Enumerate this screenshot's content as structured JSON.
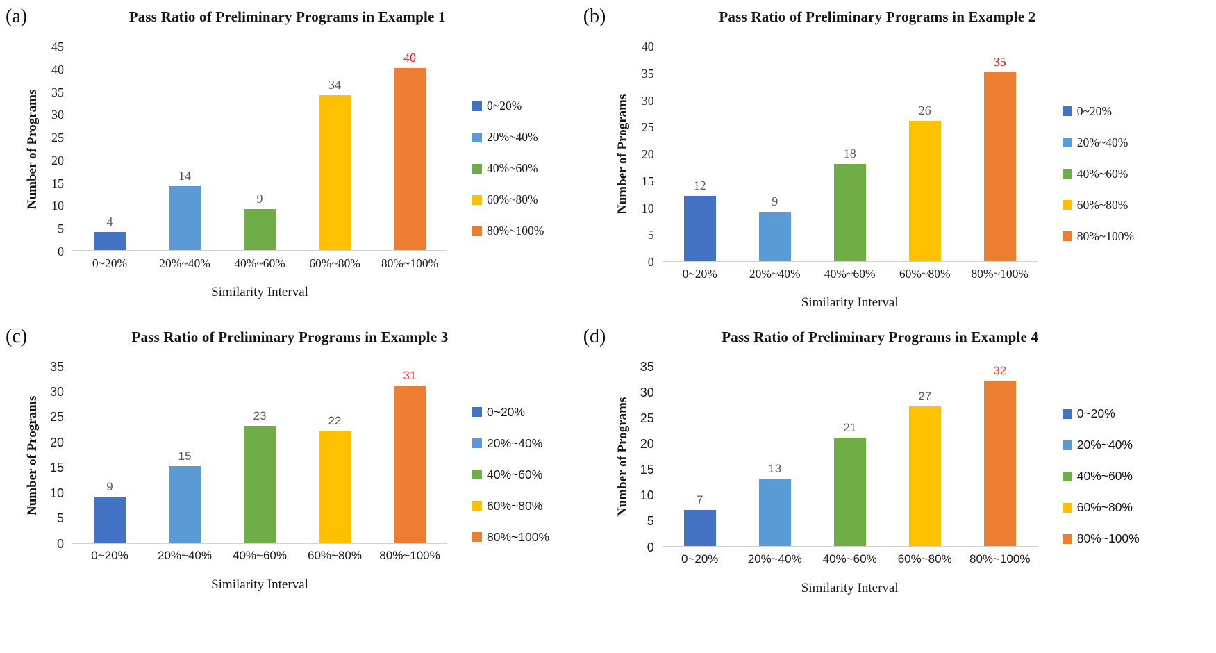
{
  "letters": [
    "(a)",
    "(b)",
    "(c)",
    "(d)"
  ],
  "chart_data": [
    {
      "type": "bar",
      "title": "Pass Ratio of Preliminary Programs in Example 1",
      "xlabel": "Similarity Interval",
      "ylabel": "Number of Programs",
      "categories": [
        "0~20%",
        "20%~40%",
        "40%~60%",
        "60%~80%",
        "80%~100%"
      ],
      "values": [
        4,
        14,
        9,
        34,
        40
      ],
      "ylim": [
        0,
        45
      ],
      "ytick_step": 5,
      "grid": false,
      "legend_position": "right",
      "legend": [
        "0~20%",
        "20%~40%",
        "40%~60%",
        "60%~80%",
        "80%~100%"
      ],
      "bar_colors": [
        "#4472C4",
        "#5B9BD5",
        "#70AD47",
        "#FFC000",
        "#ED7D31"
      ],
      "value_label_color": "#595959",
      "highlight_label_color": "#FF0000",
      "highlighted_value": 40
    },
    {
      "type": "bar",
      "title": "Pass Ratio of Preliminary Programs in Example 2",
      "xlabel": "Similarity Interval",
      "ylabel": "Number of Programs",
      "categories": [
        "0~20%",
        "20%~40%",
        "40%~60%",
        "60%~80%",
        "80%~100%"
      ],
      "values": [
        12,
        9,
        18,
        26,
        35
      ],
      "ylim": [
        0,
        40
      ],
      "ytick_step": 5,
      "grid": false,
      "legend_position": "right",
      "legend": [
        "0~20%",
        "20%~40%",
        "40%~60%",
        "60%~80%",
        "80%~100%"
      ],
      "bar_colors": [
        "#4472C4",
        "#5B9BD5",
        "#70AD47",
        "#FFC000",
        "#ED7D31"
      ],
      "value_label_color": "#595959",
      "highlight_label_color": "#FF0000",
      "highlighted_value": 35
    },
    {
      "type": "bar",
      "title": "Pass Ratio of Preliminary Programs in Example 3",
      "xlabel": "Similarity Interval",
      "ylabel": "Number of Programs",
      "categories": [
        "0~20%",
        "20%~40%",
        "40%~60%",
        "60%~80%",
        "80%~100%"
      ],
      "values": [
        9,
        15,
        23,
        22,
        31
      ],
      "ylim": [
        0,
        35
      ],
      "ytick_step": 5,
      "grid": false,
      "legend_position": "right",
      "legend": [
        "0~20%",
        "20%~40%",
        "40%~60%",
        "60%~80%",
        "80%~100%"
      ],
      "bar_colors": [
        "#4472C4",
        "#5B9BD5",
        "#70AD47",
        "#FFC000",
        "#ED7D31"
      ],
      "value_label_color": "#595959",
      "highlight_label_color": "#FF4040",
      "highlighted_value": 31
    },
    {
      "type": "bar",
      "title": "Pass Ratio of Preliminary Programs in Example 4",
      "xlabel": "Similarity Interval",
      "ylabel": "Number of Programs",
      "categories": [
        "0~20%",
        "20%~40%",
        "40%~60%",
        "60%~80%",
        "80%~100%"
      ],
      "values": [
        7,
        13,
        21,
        27,
        32
      ],
      "ylim": [
        0,
        35
      ],
      "ytick_step": 5,
      "grid": false,
      "legend_position": "right",
      "legend": [
        "0~20%",
        "20%~40%",
        "40%~60%",
        "60%~80%",
        "80%~100%"
      ],
      "bar_colors": [
        "#4472C4",
        "#5B9BD5",
        "#70AD47",
        "#FFC000",
        "#ED7D31"
      ],
      "value_label_color": "#595959",
      "highlight_label_color": "#FF4040",
      "highlighted_value": 32
    }
  ]
}
